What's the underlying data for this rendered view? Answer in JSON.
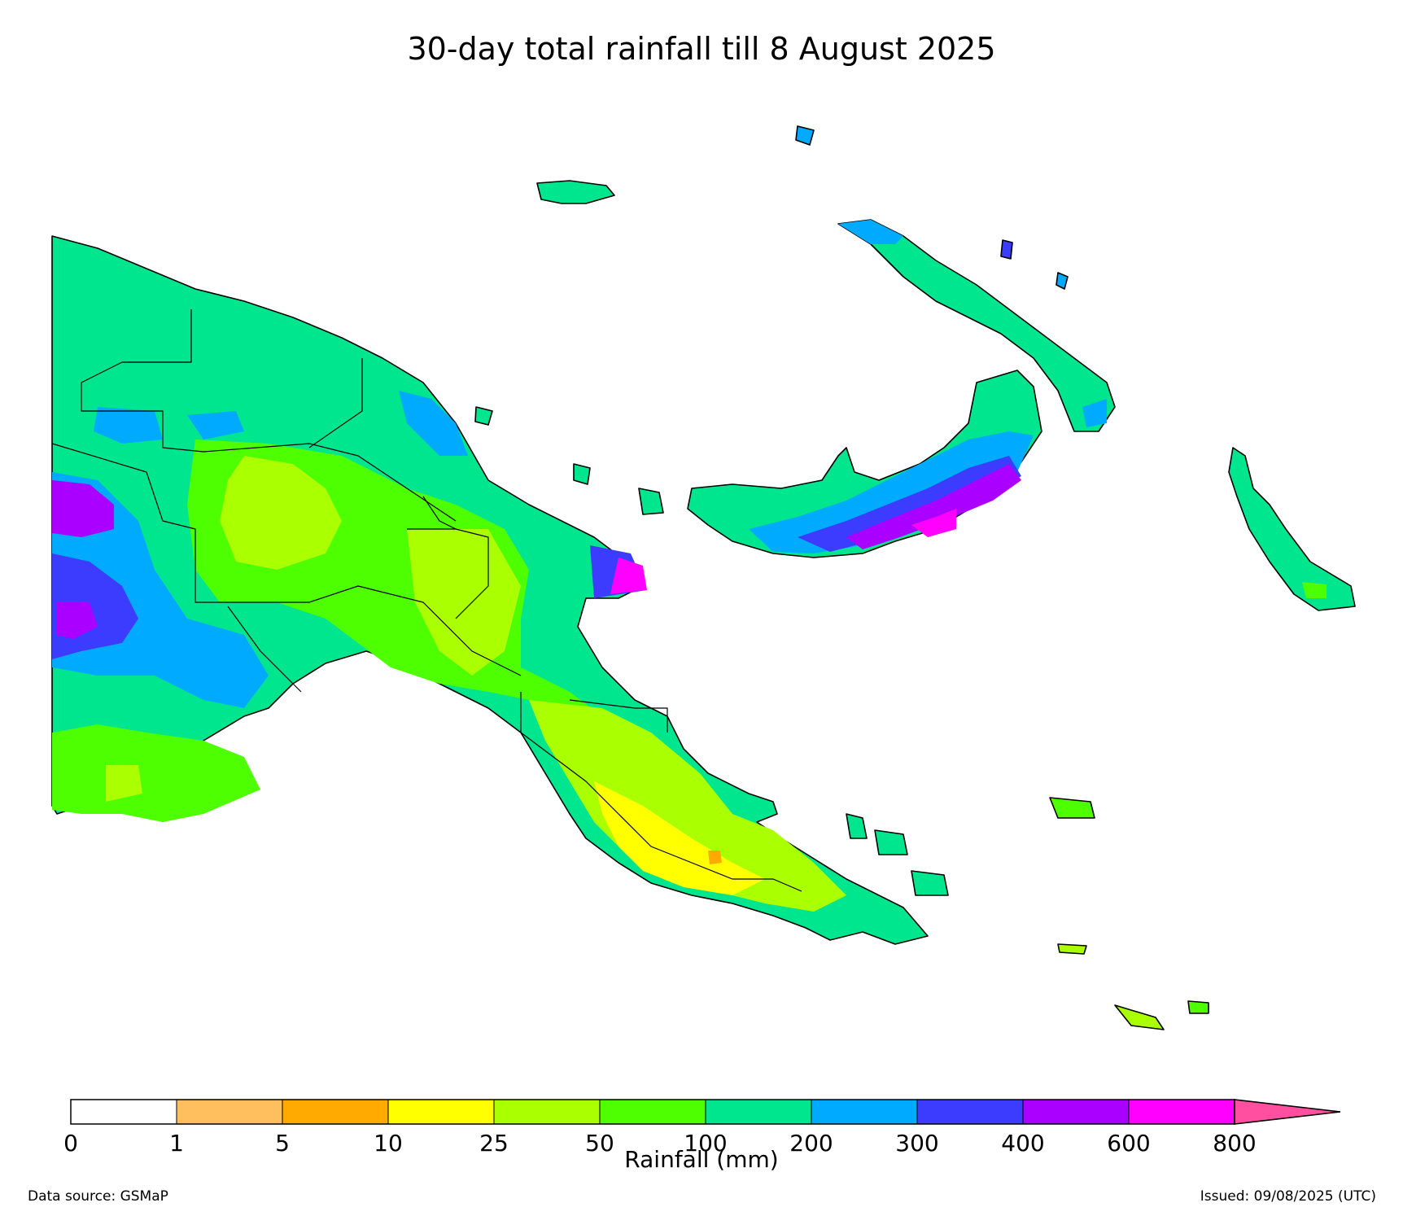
{
  "title": "30-day total rainfall till 8 August 2025",
  "legend": {
    "label": "Rainfall (mm)",
    "ticks": [
      "0",
      "1",
      "5",
      "10",
      "25",
      "50",
      "100",
      "200",
      "300",
      "400",
      "600",
      "800"
    ],
    "bins": [
      {
        "min": 0,
        "max": 1,
        "color": "#ffffff"
      },
      {
        "min": 1,
        "max": 5,
        "color": "#ffbf5f"
      },
      {
        "min": 5,
        "max": 10,
        "color": "#ffaa00"
      },
      {
        "min": 10,
        "max": 25,
        "color": "#ffff00"
      },
      {
        "min": 25,
        "max": 50,
        "color": "#aaff00"
      },
      {
        "min": 50,
        "max": 100,
        "color": "#4dff00"
      },
      {
        "min": 100,
        "max": 200,
        "color": "#00e68f"
      },
      {
        "min": 200,
        "max": 300,
        "color": "#00aaff"
      },
      {
        "min": 300,
        "max": 400,
        "color": "#3c3cff"
      },
      {
        "min": 400,
        "max": 600,
        "color": "#aa00ff"
      },
      {
        "min": 600,
        "max": 800,
        "color": "#ff00ff"
      }
    ],
    "extend_color": "#ff4fa0"
  },
  "footer": {
    "source": "Data source: GSMaP",
    "issued": "Issued: 09/08/2025 (UTC)"
  }
}
